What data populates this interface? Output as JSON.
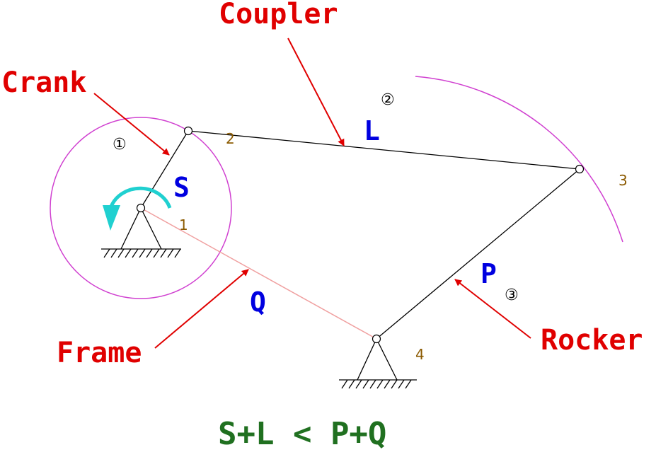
{
  "callouts": {
    "coupler": "Coupler",
    "crank": "Crank",
    "frame": "Frame",
    "rocker": "Rocker"
  },
  "link_symbols": {
    "crank": "S",
    "coupler": "L",
    "frame": "Q",
    "rocker": "P"
  },
  "joint_numbers": {
    "j1": "1",
    "j2": "2",
    "j3": "3",
    "j4": "4"
  },
  "link_numbers": {
    "n1": "①",
    "n2": "②",
    "n3": "③"
  },
  "formula": "S+L < P+Q",
  "colors": {
    "callout": "#e00000",
    "link_symbol": "#0000e0",
    "joint_number": "#8b5a00",
    "circle": "#d040d0",
    "frame_line": "#f0a0a0",
    "rotation_arrow": "#20d0d0",
    "formula": "#207020",
    "link_line": "#000000"
  }
}
